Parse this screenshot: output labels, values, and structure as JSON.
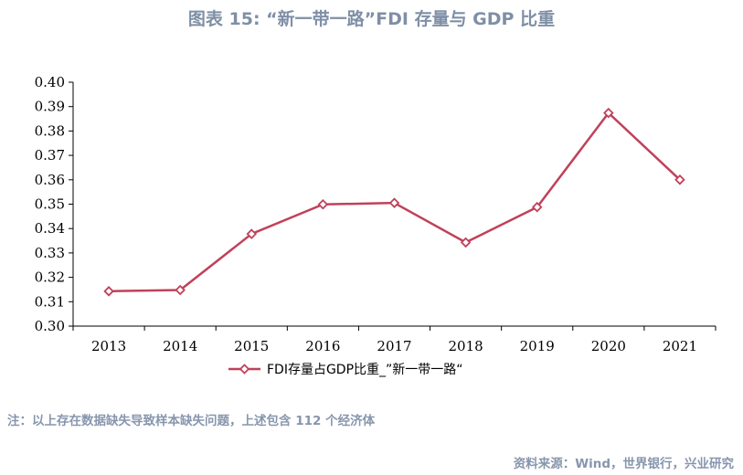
{
  "title": "图表 15: “新一带一路”FDI 存量与 GDP 比重",
  "note": "注：以上存在数据缺失导致样本缺失问题，上述包含 112 个经济体",
  "source": "资料来源：Wind，世界银行，兴业研究",
  "colors": {
    "line": "#c0415a",
    "title": "#7f8fa6",
    "footer": "#8796ad"
  },
  "chart_data": {
    "type": "line",
    "categories": [
      "2013",
      "2014",
      "2015",
      "2016",
      "2017",
      "2018",
      "2019",
      "2020",
      "2021"
    ],
    "series": [
      {
        "name": "FDI存量占GDP比重_”新一带一路“",
        "values": [
          0.3143,
          0.3148,
          0.3378,
          0.3499,
          0.3505,
          0.3343,
          0.3488,
          0.3874,
          0.36
        ]
      }
    ],
    "yticks": [
      "0.30",
      "0.31",
      "0.32",
      "0.33",
      "0.34",
      "0.35",
      "0.36",
      "0.37",
      "0.38",
      "0.39",
      "0.40"
    ],
    "ylim": [
      0.3,
      0.4
    ],
    "xlabel": "",
    "ylabel": "",
    "marker": "diamond",
    "grid": false,
    "legend_position": "bottom-center"
  }
}
